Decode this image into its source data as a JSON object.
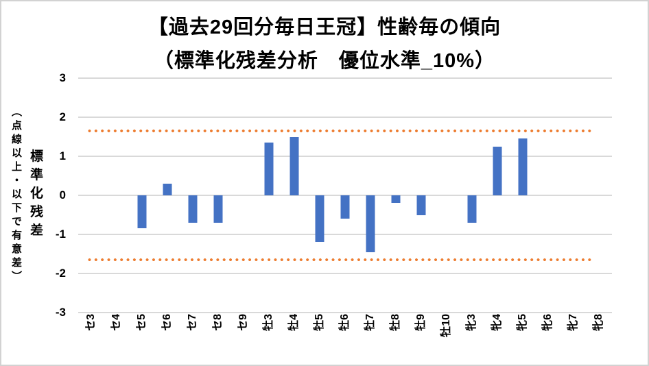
{
  "title": "【過去29回分毎日王冠】性齢毎の傾向",
  "subtitle": "（標準化残差分析　優位水準_10%）",
  "y_axis": {
    "title_main": "標準化残差",
    "title_sub": "（点線以上・以下で有意差）"
  },
  "chart_data": {
    "type": "bar",
    "title": "【過去29回分毎日王冠】性齢毎の傾向",
    "subtitle": "（標準化残差分析　優位水準_10%）",
    "ylabel": "標準化残差（点線以上・以下で有意差）",
    "xlabel": "",
    "categories": [
      "セ3",
      "セ4",
      "セ5",
      "セ6",
      "セ7",
      "セ8",
      "セ9",
      "牡3",
      "牡4",
      "牡5",
      "牡6",
      "牡7",
      "牡8",
      "牡9",
      "牡10",
      "牝3",
      "牝4",
      "牝5",
      "牝6",
      "牝7",
      "牝8"
    ],
    "values": [
      0,
      0,
      -0.85,
      0.3,
      -0.7,
      -0.7,
      0,
      1.35,
      1.5,
      -1.2,
      -0.6,
      -1.45,
      -0.2,
      -0.5,
      0,
      -0.7,
      1.25,
      1.45,
      0,
      0,
      0
    ],
    "ylim": [
      -3,
      3
    ],
    "yticks": [
      3,
      2,
      1,
      0,
      -1,
      -2,
      -3
    ],
    "threshold_upper": 1.645,
    "threshold_lower": -1.645,
    "grid": true,
    "legend_position": "none",
    "bar_color": "#4472C4",
    "threshold_color": "#ED7D31",
    "gridline_color": "#D9D9D9"
  }
}
